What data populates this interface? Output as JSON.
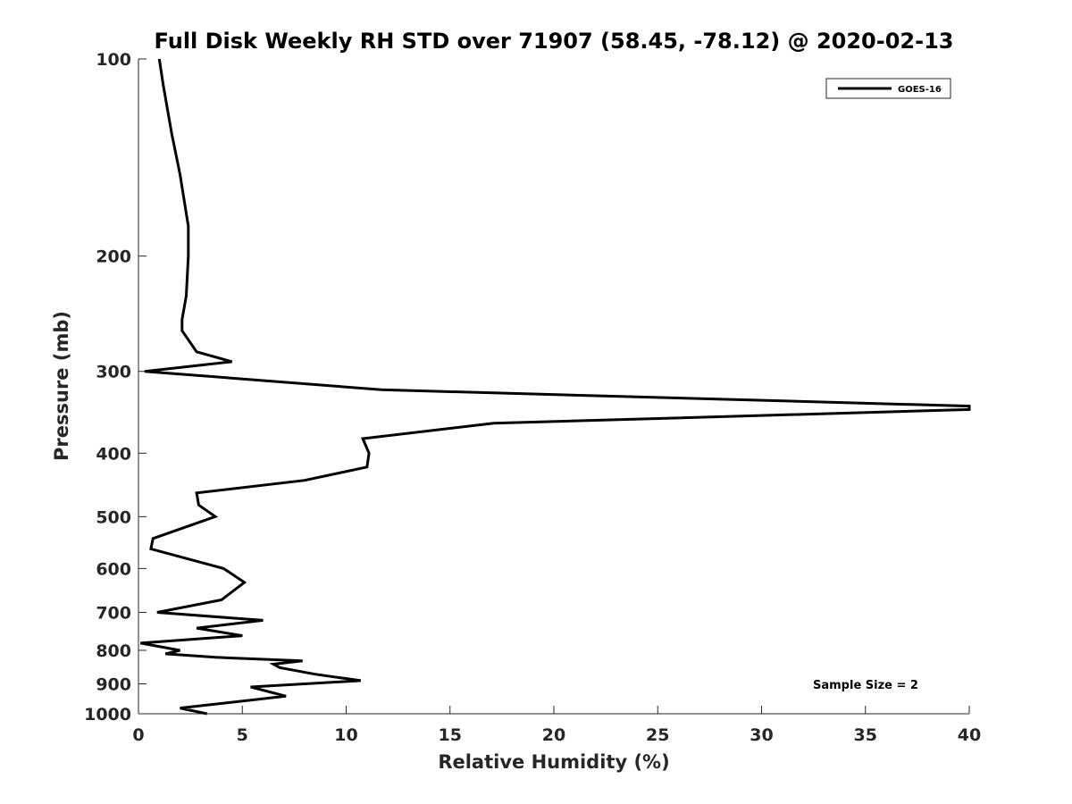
{
  "chart_data": {
    "type": "line",
    "title": "Full Disk Weekly RH STD over 71907 (58.45, -78.12) @ 2020-02-13",
    "xlabel": "Relative Humidity (%)",
    "ylabel": "Pressure (mb)",
    "xlim": [
      0,
      40
    ],
    "ylim": [
      100,
      1000
    ],
    "y_scale": "log",
    "y_reversed": true,
    "x_ticks": [
      0,
      5,
      10,
      15,
      20,
      25,
      30,
      35,
      40
    ],
    "x_tick_labels": [
      "0",
      "5",
      "10",
      "15",
      "20",
      "25",
      "30",
      "35",
      "40"
    ],
    "y_ticks": [
      100,
      200,
      300,
      400,
      500,
      600,
      700,
      800,
      900,
      1000
    ],
    "y_tick_labels": [
      "100",
      "200",
      "300",
      "400",
      "500",
      "600",
      "700",
      "800",
      "900",
      "1000"
    ],
    "grid": false,
    "legend_position": "top-right",
    "series": [
      {
        "name": "GOES-16",
        "color": "#000000",
        "x": [
          1.0,
          1.2,
          1.6,
          2.0,
          2.4,
          2.4,
          2.3,
          2.1,
          2.1,
          2.8,
          4.5,
          0.3,
          11.7,
          40.0,
          40.0,
          17.1,
          10.8,
          11.1,
          11.0,
          8.0,
          2.8,
          2.9,
          3.7,
          0.7,
          0.6,
          4.1,
          5.1,
          4.0,
          0.9,
          6.0,
          2.8,
          5.0,
          0.1,
          2.0,
          1.3,
          3.7,
          7.9,
          6.5,
          6.8,
          8.5,
          10.7,
          5.4,
          7.1,
          2.0,
          3.3
        ],
        "y": [
          100,
          110,
          130,
          150,
          180,
          200,
          230,
          250,
          260,
          280,
          290,
          300,
          320,
          339,
          343,
          360,
          380,
          400,
          420,
          440,
          460,
          480,
          500,
          540,
          560,
          600,
          630,
          670,
          700,
          720,
          740,
          760,
          780,
          800,
          810,
          820,
          830,
          840,
          850,
          870,
          890,
          910,
          940,
          980,
          1000
        ]
      }
    ],
    "annotations": [
      {
        "text": "Sample Size = 2"
      }
    ]
  }
}
